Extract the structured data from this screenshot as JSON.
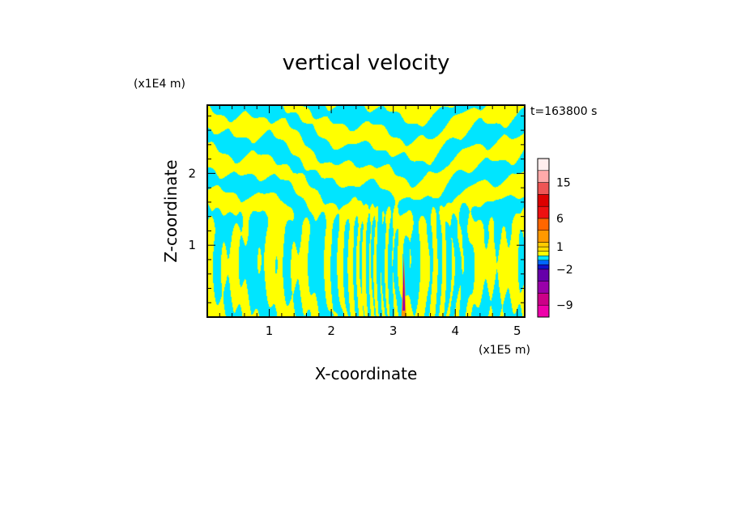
{
  "chart_data": {
    "type": "heatmap",
    "title": "vertical velocity",
    "xlabel": "X-coordinate",
    "ylabel": "Z-coordinate",
    "x_unit": "(x1E5 m)",
    "y_unit": "(x1E4 m)",
    "time_label": "t=163800 s",
    "xlim": [
      0,
      5.12
    ],
    "ylim": [
      0,
      2.95
    ],
    "x_ticks": [
      {
        "value": 1,
        "label": "1"
      },
      {
        "value": 2,
        "label": "2"
      },
      {
        "value": 3,
        "label": "3"
      },
      {
        "value": 4,
        "label": "4"
      },
      {
        "value": 5,
        "label": "5"
      }
    ],
    "y_ticks": [
      {
        "value": 1,
        "label": "1"
      },
      {
        "value": 2,
        "label": "2"
      }
    ],
    "colorbar": {
      "levels": [
        {
          "from": -12,
          "to": -9,
          "color": "#ee00aa"
        },
        {
          "from": -9,
          "to": -6,
          "color": "#cc0088"
        },
        {
          "from": -6,
          "to": -4,
          "color": "#9900aa"
        },
        {
          "from": -4,
          "to": -2,
          "color": "#6600aa"
        },
        {
          "from": -2,
          "to": -1,
          "color": "#1111cc"
        },
        {
          "from": -1,
          "to": -0.5,
          "color": "#0066ff"
        },
        {
          "from": -0.5,
          "to": 0,
          "color": "#00e5ff"
        },
        {
          "from": 0,
          "to": 0.5,
          "color": "#ffff00"
        },
        {
          "from": 0.5,
          "to": 1,
          "color": "#ffdd00"
        },
        {
          "from": 1,
          "to": 2,
          "color": "#ffcc00"
        },
        {
          "from": 2,
          "to": 4,
          "color": "#ff9900"
        },
        {
          "from": 4,
          "to": 6,
          "color": "#ff6600"
        },
        {
          "from": 6,
          "to": 9,
          "color": "#ee1111"
        },
        {
          "from": 9,
          "to": 12,
          "color": "#dd0000"
        },
        {
          "from": 12,
          "to": 15,
          "color": "#ee5555"
        },
        {
          "from": 15,
          "to": 18,
          "color": "#ffaaaa"
        },
        {
          "from": 18,
          "to": 24,
          "color": "#ffeeee"
        }
      ],
      "tick_labels": [
        {
          "value": 15,
          "label": "15"
        },
        {
          "value": 6,
          "label": "6"
        },
        {
          "value": 1,
          "label": "1"
        },
        {
          "value": -2,
          "label": "−2"
        },
        {
          "value": -9,
          "label": "−9"
        }
      ]
    },
    "field": {
      "positive_color": "#ffff00",
      "negative_color": "#00e5ff",
      "updraft_x": 3.17,
      "updraft_top": 0.9
    }
  }
}
